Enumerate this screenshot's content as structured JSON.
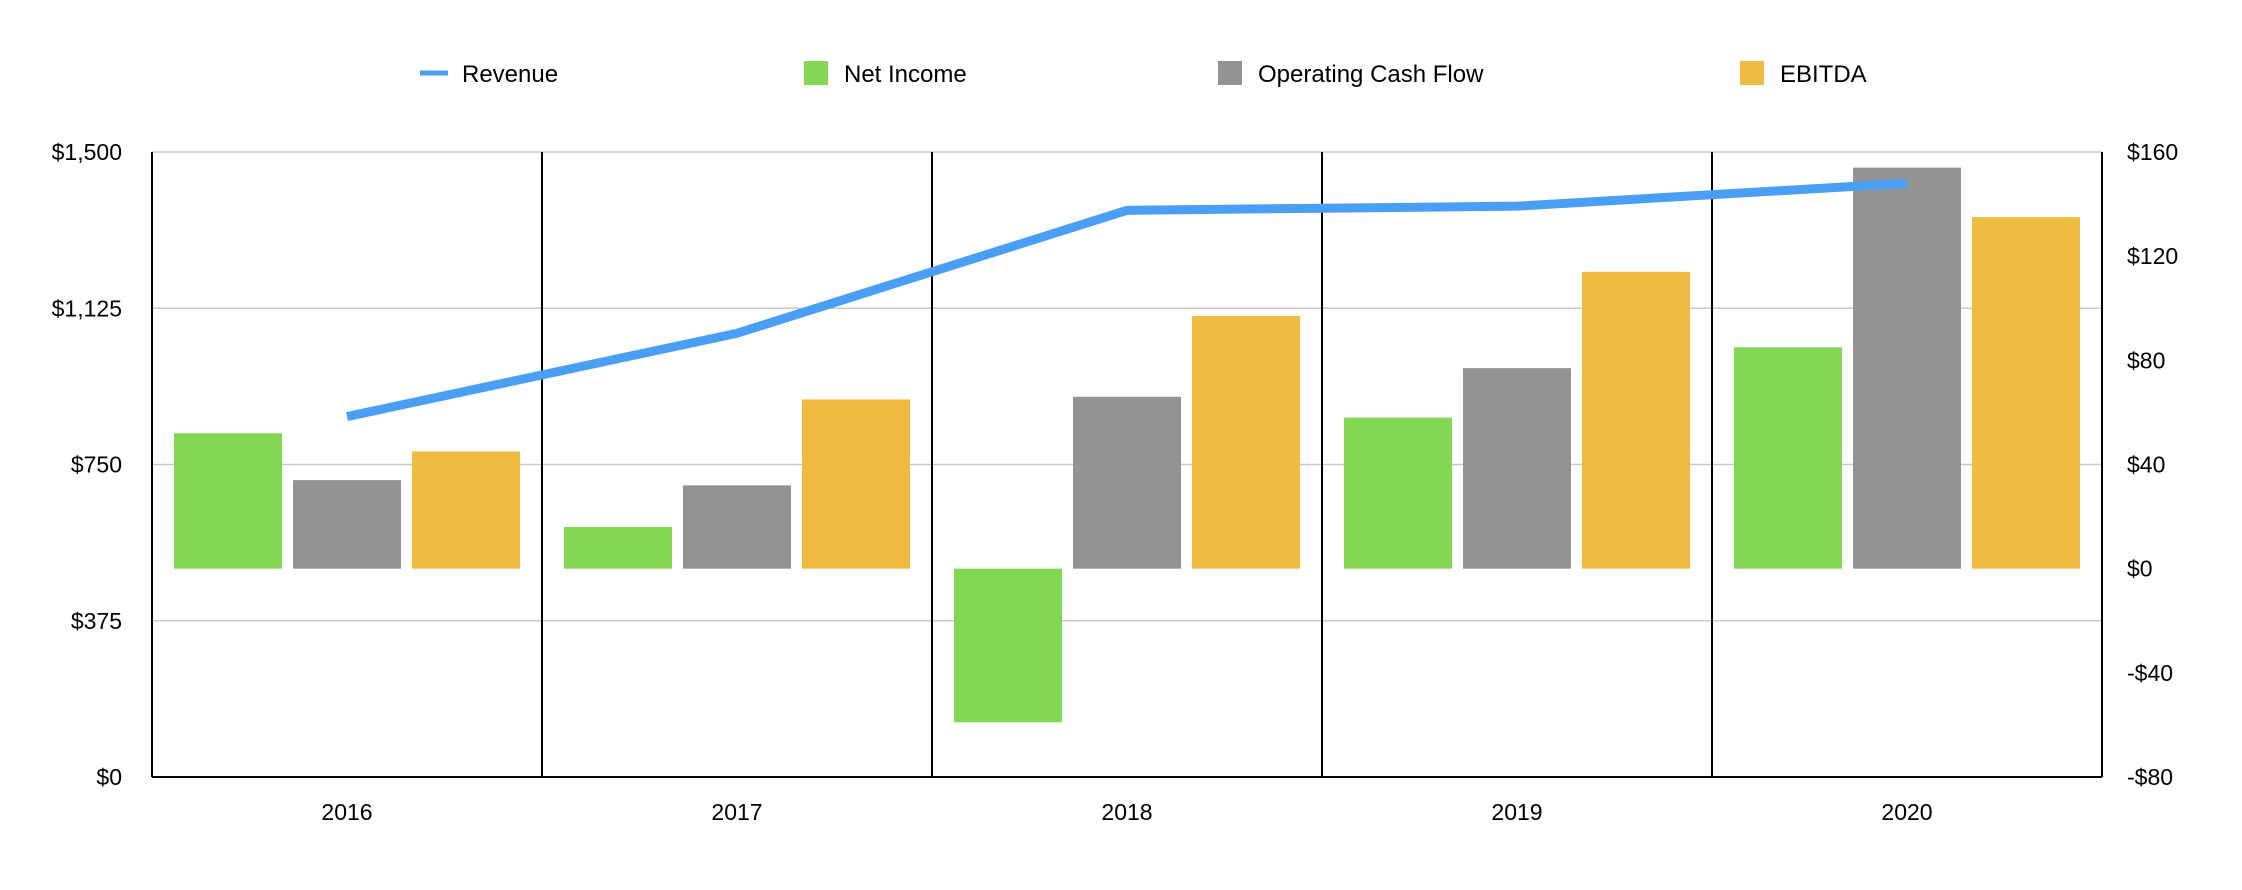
{
  "chart_data": {
    "type": "bar",
    "categories": [
      "2016",
      "2017",
      "2018",
      "2019",
      "2020"
    ],
    "series": [
      {
        "name": "Revenue",
        "kind": "line",
        "axis": "left",
        "color": "#4a9ff5",
        "values": [
          865,
          1065,
          1360,
          1370,
          1425
        ]
      },
      {
        "name": "Net Income",
        "kind": "bar",
        "axis": "right",
        "color": "#82d754",
        "values": [
          52,
          16,
          -59,
          58,
          85
        ]
      },
      {
        "name": "Operating Cash Flow",
        "kind": "bar",
        "axis": "right",
        "color": "#939393",
        "values": [
          34,
          32,
          66,
          77,
          154
        ]
      },
      {
        "name": "EBITDA",
        "kind": "bar",
        "axis": "right",
        "color": "#eebc40",
        "values": [
          45,
          65,
          97,
          114,
          135
        ]
      }
    ],
    "yaxis_left": {
      "ylim": [
        0,
        1500
      ],
      "ticks": [
        0,
        375,
        750,
        1125,
        1500
      ],
      "tick_labels": [
        "$0",
        "$375",
        "$750",
        "$1,125",
        "$1,500"
      ]
    },
    "yaxis_right": {
      "ylim": [
        -80,
        160
      ],
      "ticks": [
        -80,
        -40,
        0,
        40,
        80,
        120,
        160
      ],
      "tick_labels": [
        "-$80",
        "-$40",
        "$0",
        "$40",
        "$80",
        "$120",
        "$160"
      ]
    },
    "title": "",
    "xlabel": "",
    "ylabel": "",
    "grid": true,
    "legend_position": "top"
  }
}
